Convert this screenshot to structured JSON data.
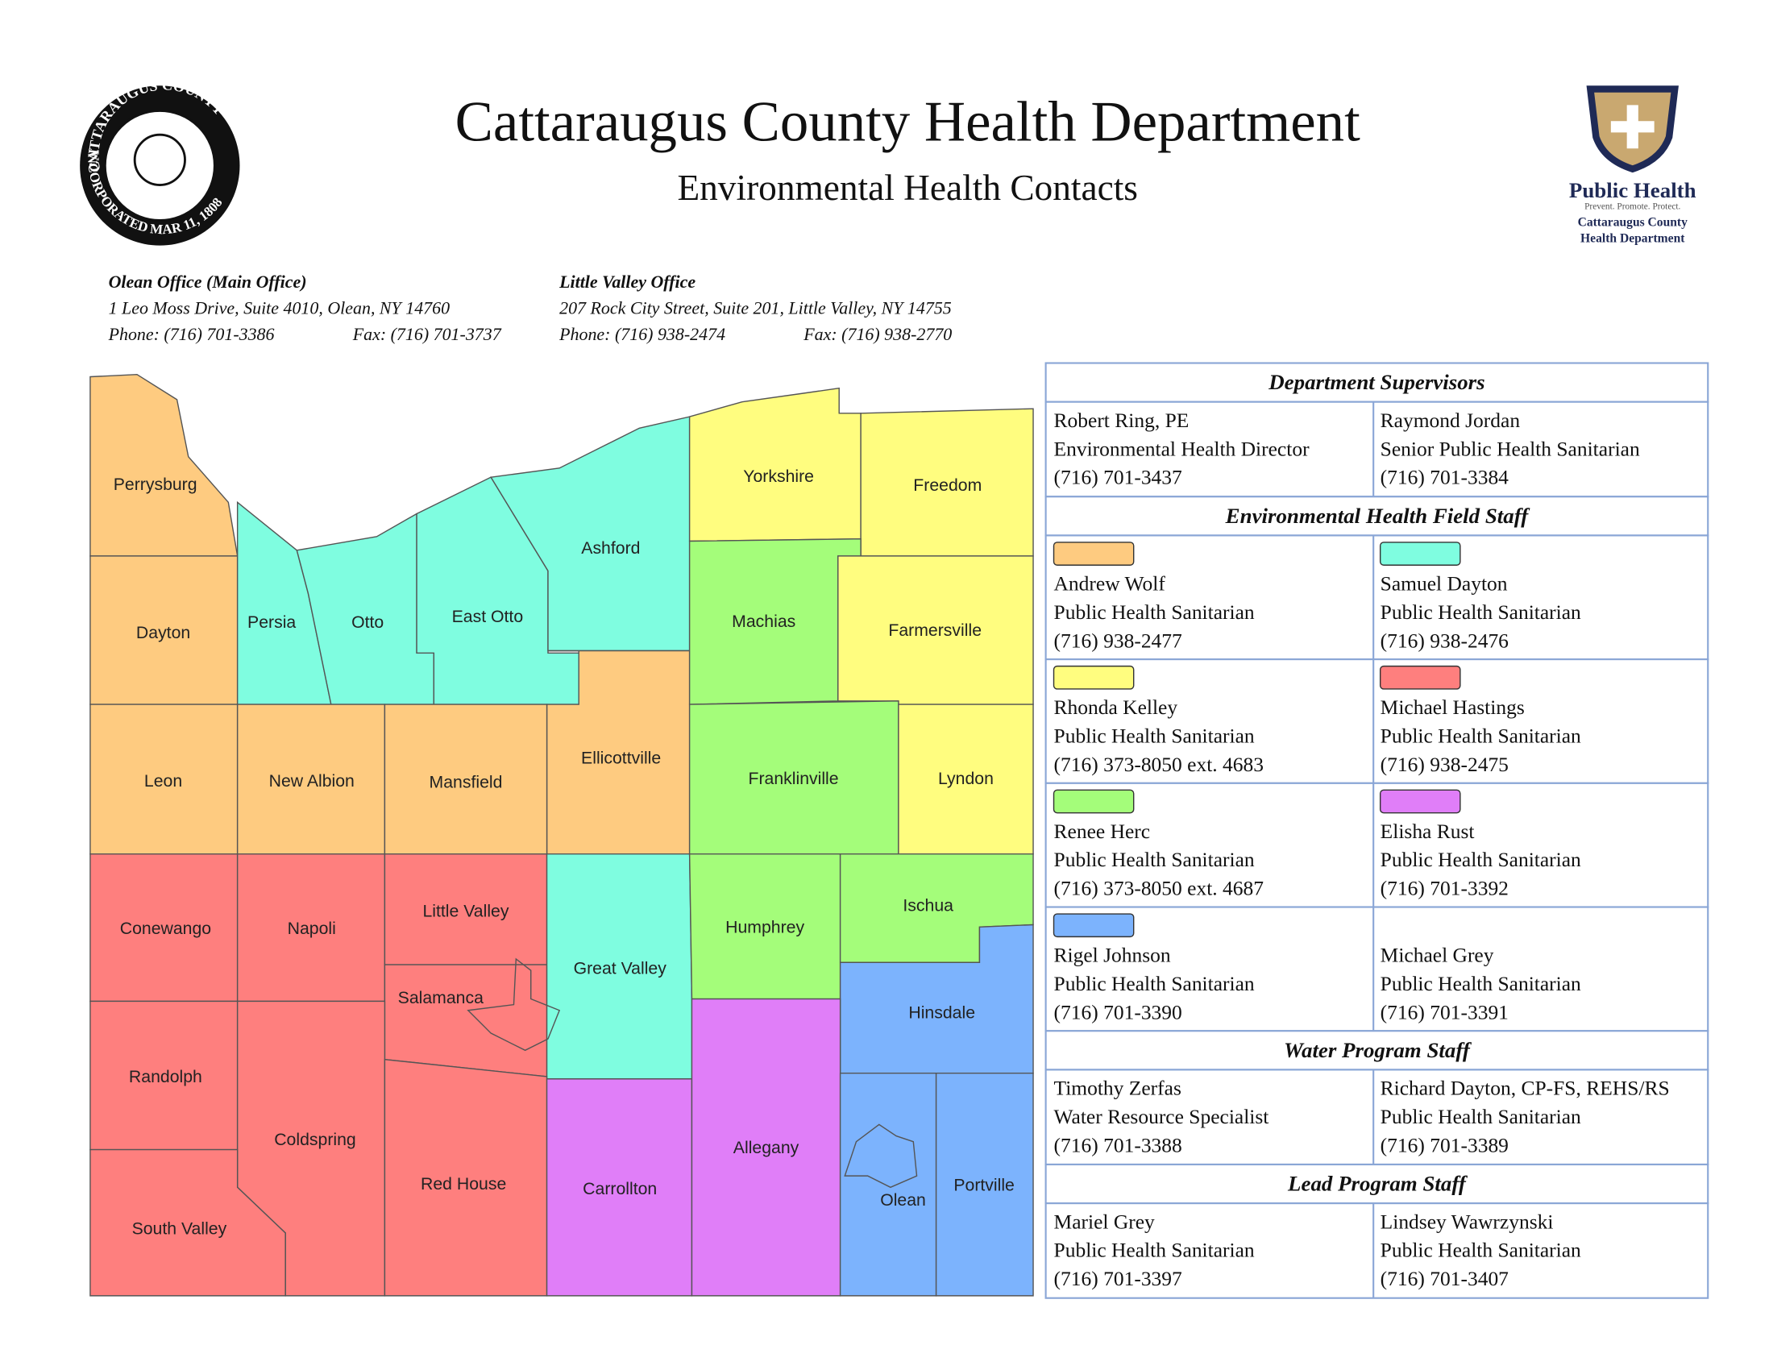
{
  "header": {
    "title": "Cattaraugus County Health Department",
    "subtitle": "Environmental Health Contacts",
    "seal": {
      "top": "CATTARAUGUS COUNTY",
      "bottom": "INCORPORATED MAR 11, 1808"
    },
    "logo": {
      "name": "Public Health",
      "tagline": "Prevent. Promote. Protect.",
      "org1": "Cattaraugus County",
      "org2": "Health Department"
    }
  },
  "offices": [
    {
      "name": "Olean Office (Main Office)",
      "address": "1 Leo Moss Drive, Suite 4010, Olean, NY 14760",
      "phone": "Phone: (716) 701-3386",
      "fax": "Fax: (716) 701-3737"
    },
    {
      "name": "Little Valley Office",
      "address": "207 Rock City Street, Suite 201, Little Valley, NY 14755",
      "phone": "Phone: (716) 938-2474",
      "fax": "Fax: (716) 938-2770"
    }
  ],
  "map": {
    "towns": [
      "Perrysburg",
      "Dayton",
      "Persia",
      "Otto",
      "East Otto",
      "Ashford",
      "Ellicottville",
      "Yorkshire",
      "Freedom",
      "Machias",
      "Farmersville",
      "Franklinville",
      "Lyndon",
      "Leon",
      "New Albion",
      "Mansfield",
      "Conewango",
      "Napoli",
      "Little Valley",
      "Salamanca",
      "Great Valley",
      "Humphrey",
      "Ischua",
      "Hinsdale",
      "Randolph",
      "Coldspring",
      "South Valley",
      "Red House",
      "Carrollton",
      "Allegany",
      "Olean",
      "Portville"
    ]
  },
  "table": {
    "sections": [
      {
        "title": "Department Supervisors",
        "contacts": [
          [
            "Robert Ring, PE",
            "Environmental Health Director",
            "(716) 701-3437"
          ],
          [
            "Raymond Jordan",
            "Senior Public Health Sanitarian",
            "(716) 701-3384"
          ]
        ]
      },
      {
        "title": "Environmental Health Field Staff",
        "contacts": [
          [
            "Andrew Wolf",
            "Public Health Sanitarian",
            "(716) 938-2477"
          ],
          [
            "Samuel Dayton",
            "Public Health Sanitarian",
            "(716) 938-2476"
          ],
          [
            "Rhonda Kelley",
            "Public Health Sanitarian",
            "(716) 373-8050 ext. 4683"
          ],
          [
            "Michael Hastings",
            "Public Health Sanitarian",
            "(716) 938-2475"
          ],
          [
            "Renee Herc",
            "Public Health Sanitarian",
            "(716) 373-8050 ext. 4687"
          ],
          [
            "Elisha Rust",
            "Public Health Sanitarian",
            "(716) 701-3392"
          ],
          [
            "Rigel Johnson",
            "Public Health Sanitarian",
            "(716) 701-3390"
          ],
          [
            "Michael Grey",
            "Public Health Sanitarian",
            "(716) 701-3391"
          ]
        ]
      },
      {
        "title": "Water Program Staff",
        "contacts": [
          [
            "Timothy Zerfas",
            "Water Resource Specialist",
            "(716) 701-3388"
          ],
          [
            "Richard Dayton, CP-FS, REHS/RS",
            "Public Health Sanitarian",
            "(716) 701-3389"
          ]
        ]
      },
      {
        "title": "Lead Program Staff",
        "contacts": [
          [
            "Mariel Grey",
            "Public Health Sanitarian",
            "(716) 701-3397"
          ],
          [
            "Lindsey Wawrzynski",
            "Public Health Sanitarian",
            "(716) 701-3407"
          ]
        ]
      }
    ]
  }
}
